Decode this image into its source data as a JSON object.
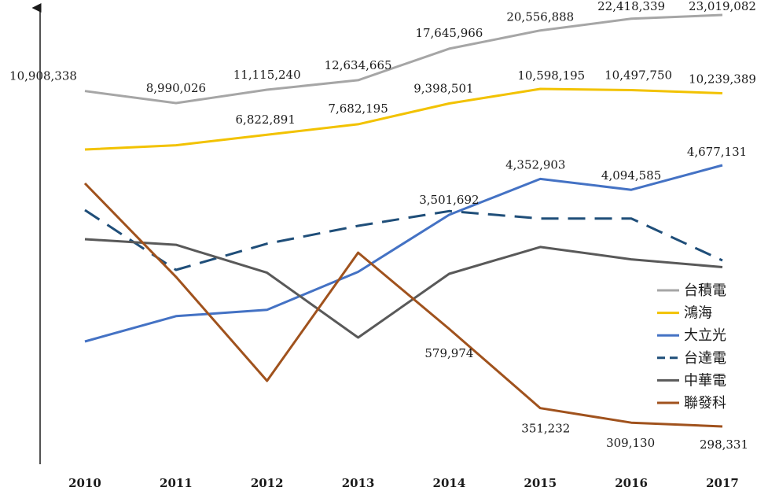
{
  "chart_data": {
    "type": "line",
    "title": "",
    "xlabel": "",
    "ylabel": "",
    "categories": [
      "2010",
      "2011",
      "2012",
      "2013",
      "2014",
      "2015",
      "2016",
      "2017"
    ],
    "legend_position": "right",
    "grid": false,
    "y_axis": "unlabeled, each series drawn on its own scale",
    "series": [
      {
        "name": "台積電",
        "color": "#a6a6a6",
        "dash": "solid",
        "values": [
          10908338,
          8990026,
          11115240,
          12634665,
          17645966,
          20556888,
          22418339,
          23019082
        ],
        "labels": [
          "10,908,338",
          "8,990,026",
          "11,115,240",
          "12,634,665",
          "17,645,966",
          "20,556,888",
          "22,418,339",
          "23,019,082"
        ]
      },
      {
        "name": "鴻海",
        "color": "#f2c200",
        "dash": "solid",
        "values": [
          5600000,
          5950000,
          6822891,
          7682195,
          9398501,
          10598195,
          10497750,
          10239389
        ],
        "labels": [
          "",
          "",
          "6,822,891",
          "7,682,195",
          "9,398,501",
          "10,598,195",
          "10,497,750",
          "10,239,389"
        ]
      },
      {
        "name": "大立光",
        "color": "#4472c4",
        "dash": "solid",
        "values": [
          500000,
          1100000,
          1250000,
          2150000,
          3501692,
          4352903,
          4094585,
          4677131
        ],
        "labels": [
          "",
          "",
          "",
          "",
          "3,501,692",
          "4,352,903",
          "4,094,585",
          "4,677,131"
        ]
      },
      {
        "name": "台達電",
        "color": "#1f4e79",
        "dash": "dashed",
        "values": [
          1650000,
          1080000,
          1330000,
          1500000,
          1640000,
          1570000,
          1570000,
          1170000
        ],
        "labels": []
      },
      {
        "name": "中華電",
        "color": "#595959",
        "dash": "solid",
        "values": [
          1400000,
          1350000,
          1100000,
          520000,
          1090000,
          1330000,
          1220000,
          1150000
        ],
        "labels": []
      },
      {
        "name": "聯發科",
        "color": "#a0521d",
        "dash": "solid",
        "values": [
          1000000,
          730000,
          430000,
          800000,
          579974,
          351232,
          309130,
          298331
        ],
        "labels": [
          "",
          "",
          "",
          "",
          "579,974",
          "351,232",
          "309,130",
          "298,331"
        ]
      }
    ]
  }
}
